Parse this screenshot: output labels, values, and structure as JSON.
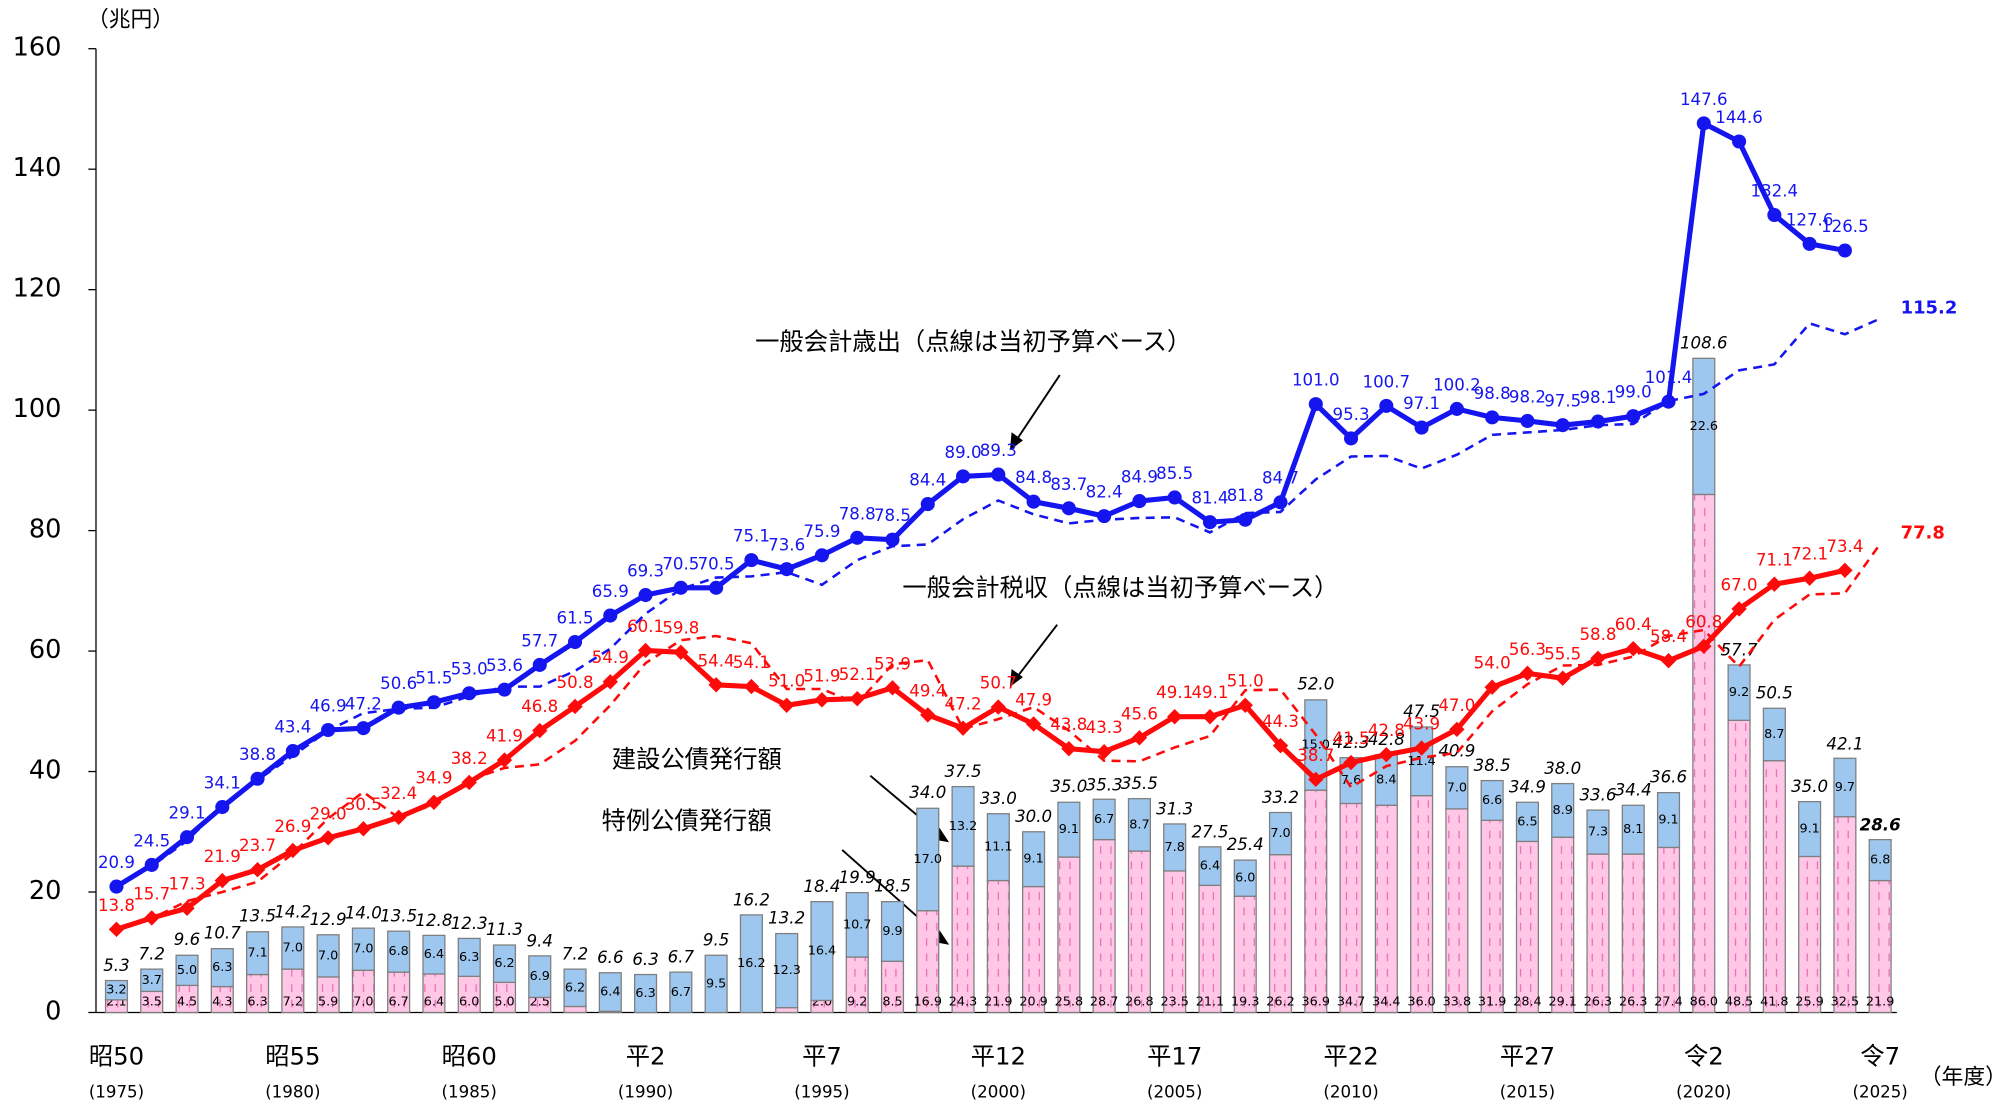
{
  "chart_data": {
    "type": "combo",
    "y_unit": "（兆円）",
    "x_unit": "（年度）",
    "categories": [
      "昭50",
      null,
      null,
      null,
      null,
      "昭55",
      null,
      null,
      null,
      null,
      "昭60",
      null,
      null,
      null,
      null,
      "平2",
      null,
      null,
      null,
      null,
      "平7",
      null,
      null,
      null,
      null,
      "平12",
      null,
      null,
      null,
      null,
      "平17",
      null,
      null,
      null,
      null,
      "平22",
      null,
      null,
      null,
      null,
      "平27",
      null,
      null,
      null,
      null,
      "令2",
      null,
      null,
      null,
      null,
      "令7"
    ],
    "category_years": [
      "(1975)",
      null,
      null,
      null,
      null,
      "(1980)",
      null,
      null,
      null,
      null,
      "(1985)",
      null,
      null,
      null,
      null,
      "(1990)",
      null,
      null,
      null,
      null,
      "(1995)",
      null,
      null,
      null,
      null,
      "(2000)",
      null,
      null,
      null,
      null,
      "(2005)",
      null,
      null,
      null,
      null,
      "(2010)",
      null,
      null,
      null,
      null,
      "(2015)",
      null,
      null,
      null,
      null,
      "(2020)",
      null,
      null,
      null,
      null,
      "(2025)"
    ],
    "ylim": [
      0,
      160
    ],
    "yticks": [
      0,
      20,
      40,
      60,
      80,
      100,
      120,
      140,
      160
    ],
    "annotations": [
      "一般会計歳出（点線は当初予算ベース）",
      "一般会計税収（点線は当初予算ベース）",
      "建設公債発行額",
      "特例公債発行額"
    ],
    "bars": [
      {
        "color": "#ffc6e6",
        "values": [
          2.1,
          3.5,
          4.5,
          4.3,
          6.3,
          7.2,
          5.9,
          7.0,
          6.7,
          6.4,
          6.0,
          5.0,
          2.5,
          1.0,
          0.2,
          null,
          null,
          null,
          null,
          0.8,
          2.0,
          9.2,
          8.5,
          16.9,
          24.3,
          21.9,
          20.9,
          25.8,
          28.7,
          26.8,
          23.5,
          21.1,
          19.3,
          26.2,
          36.9,
          34.7,
          34.4,
          36.0,
          33.8,
          31.9,
          28.4,
          29.1,
          26.3,
          26.3,
          27.4,
          86.0,
          48.5,
          41.8,
          25.9,
          32.5,
          21.9
        ],
        "value_labels": [
          "2.1",
          "3.5",
          "4.5",
          "4.3",
          "6.3",
          "7.2",
          "5.9",
          "7.0",
          "6.7",
          "6.4",
          "6.0",
          "5.0",
          "2.5",
          "1.0",
          "0.2",
          null,
          null,
          null,
          null,
          "0.8",
          "2.0",
          "9.2",
          "8.5",
          "16.9",
          "24.3",
          "21.9",
          "20.9",
          "25.8",
          "28.7",
          "26.8",
          "23.5",
          "21.1",
          "19.3",
          "26.2",
          "36.9",
          "34.7",
          "34.4",
          "36.0",
          "33.8",
          "31.9",
          "28.4",
          "29.1",
          "26.3",
          "26.3",
          "27.4",
          "86.0",
          "48.5",
          "41.8",
          "25.9",
          "32.5",
          "21.9"
        ]
      },
      {
        "color": "#9dc7ee",
        "values": [
          3.2,
          3.7,
          5.0,
          6.3,
          7.1,
          7.0,
          7.0,
          7.0,
          6.8,
          6.4,
          6.3,
          6.2,
          6.9,
          6.2,
          6.4,
          6.3,
          6.7,
          9.5,
          16.2,
          12.3,
          16.4,
          10.7,
          9.9,
          17.0,
          13.2,
          11.1,
          9.1,
          9.1,
          6.7,
          8.7,
          7.8,
          6.4,
          6.0,
          7.0,
          15.0,
          7.6,
          8.4,
          11.4,
          7.0,
          6.6,
          6.5,
          8.9,
          7.3,
          8.1,
          9.1,
          22.6,
          9.2,
          8.7,
          9.1,
          9.7,
          6.8
        ],
        "value_labels": [
          "3.2",
          "3.7",
          "5.0",
          "6.3",
          "7.1",
          "7.0",
          "7.0",
          "7.0",
          "6.8",
          "6.4",
          "6.3",
          "6.2",
          "6.9",
          "6.2",
          "6.4",
          "6.3",
          "6.7",
          "9.5",
          "16.2",
          "12.3",
          "16.4",
          "10.7",
          "9.9",
          "17.0",
          "13.2",
          "11.1",
          "9.1",
          "9.1",
          "6.7",
          "8.7",
          "7.8",
          "6.4",
          "6.0",
          "7.0",
          "15.0",
          "7.6",
          "8.4",
          "11.4",
          "7.0",
          "6.6",
          "6.5",
          "8.9",
          "7.3",
          "8.1",
          "9.1",
          "22.6",
          "9.2",
          "8.7",
          "9.1",
          "9.7",
          "6.8"
        ]
      }
    ],
    "bar_totals": {
      "values": [
        5.3,
        7.2,
        9.6,
        10.7,
        13.5,
        14.2,
        12.9,
        14.0,
        13.5,
        12.8,
        12.3,
        11.3,
        9.4,
        7.2,
        6.6,
        6.3,
        6.7,
        9.5,
        16.2,
        13.2,
        18.4,
        19.9,
        18.5,
        34.0,
        37.5,
        33.0,
        30.0,
        35.0,
        35.3,
        35.5,
        31.3,
        27.5,
        25.4,
        33.2,
        52.0,
        42.3,
        42.8,
        47.5,
        40.9,
        38.5,
        34.9,
        38.0,
        33.6,
        34.4,
        36.6,
        108.6,
        57.7,
        50.5,
        35.0,
        42.1,
        28.6
      ],
      "value_labels": [
        "5.3",
        "7.2",
        "9.6",
        "10.7",
        "13.5",
        "14.2",
        "12.9",
        "14.0",
        "13.5",
        "12.8",
        "12.3",
        "11.3",
        "9.4",
        "7.2",
        "6.6",
        "6.3",
        "6.7",
        "9.5",
        "16.2",
        "13.2",
        "18.4",
        "19.9",
        "18.5",
        "34.0",
        "37.5",
        "33.0",
        "30.0",
        "35.0",
        "35.3",
        "35.5",
        "31.3",
        "27.5",
        "25.4",
        "33.2",
        "52.0",
        "42.3",
        "42.8",
        "47.5",
        "40.9",
        "38.5",
        "34.9",
        "38.0",
        "33.6",
        "34.4",
        "36.6",
        "108.6",
        "57.7",
        "50.5",
        "35.0",
        "42.1",
        "28.6"
      ]
    },
    "series": [
      {
        "color": "#1515f0",
        "dashed": false,
        "marker": "circle",
        "values": [
          20.9,
          24.5,
          29.1,
          34.1,
          38.8,
          43.4,
          46.9,
          47.2,
          50.6,
          51.5,
          53.0,
          53.6,
          57.7,
          61.5,
          65.9,
          69.3,
          70.5,
          70.5,
          75.1,
          73.6,
          75.9,
          78.8,
          78.5,
          84.4,
          89.0,
          89.3,
          84.8,
          83.7,
          82.4,
          84.9,
          85.5,
          81.4,
          81.8,
          84.7,
          101.0,
          95.3,
          100.7,
          97.1,
          100.2,
          98.8,
          98.2,
          97.5,
          98.1,
          99.0,
          101.4,
          147.6,
          144.6,
          132.4,
          127.6,
          126.5,
          null
        ],
        "value_labels": [
          "20.9",
          "24.5",
          "29.1",
          "34.1",
          "38.8",
          "43.4",
          "46.9",
          "47.2",
          "50.6",
          "51.5",
          "53.0",
          "53.6",
          "57.7",
          "61.5",
          "65.9",
          "69.3",
          "70.5",
          "70.5",
          "75.1",
          "73.6",
          "75.9",
          "78.8",
          "78.5",
          "84.4",
          "89.0",
          "89.3",
          "84.8",
          "83.7",
          "82.4",
          "84.9",
          "85.5",
          "81.4",
          "81.8",
          "84.7",
          "101.0",
          "95.3",
          "100.7",
          "97.1",
          "100.2",
          "98.8",
          "98.2",
          "97.5",
          "98.1",
          "99.0",
          "101.4",
          "147.6",
          "144.6",
          "132.4",
          "127.6",
          "126.5",
          null
        ]
      },
      {
        "color": "#ff0a0a",
        "dashed": false,
        "marker": "diamond",
        "values": [
          13.8,
          15.7,
          17.3,
          21.9,
          23.7,
          26.9,
          29.0,
          30.5,
          32.4,
          34.9,
          38.2,
          41.9,
          46.8,
          50.8,
          54.9,
          60.1,
          59.8,
          54.4,
          54.1,
          51.0,
          51.9,
          52.1,
          53.9,
          49.4,
          47.2,
          50.7,
          47.9,
          43.8,
          43.3,
          45.6,
          49.1,
          49.1,
          51.0,
          44.3,
          38.7,
          41.5,
          42.8,
          43.9,
          47.0,
          54.0,
          56.3,
          55.5,
          58.8,
          60.4,
          58.4,
          60.8,
          67.0,
          71.1,
          72.1,
          73.4,
          null
        ],
        "value_labels": [
          "13.8",
          "15.7",
          "17.3",
          "21.9",
          "23.7",
          "26.9",
          "29.0",
          "30.5",
          "32.4",
          "34.9",
          "38.2",
          "41.9",
          "46.8",
          "50.8",
          "54.9",
          "60.1",
          "59.8",
          "54.4",
          "54.1",
          "51.0",
          "51.9",
          "52.1",
          "53.9",
          "49.4",
          "47.2",
          "50.7",
          "47.9",
          "43.8",
          "43.3",
          "45.6",
          "49.1",
          "49.1",
          "51.0",
          "44.3",
          "38.7",
          "41.5",
          "42.8",
          "43.9",
          "47.0",
          "54.0",
          "56.3",
          "55.5",
          "58.8",
          "60.4",
          "58.4",
          "60.8",
          "67.0",
          "71.1",
          "72.1",
          "73.4",
          null
        ]
      },
      {
        "color": "#1515f0",
        "dashed": true,
        "marker": "none",
        "values": [
          21.0,
          24.3,
          28.5,
          34.3,
          38.6,
          42.6,
          46.8,
          49.7,
          50.4,
          50.6,
          52.5,
          54.1,
          54.1,
          56.7,
          60.4,
          66.2,
          70.3,
          72.2,
          72.4,
          73.1,
          71.0,
          75.1,
          77.4,
          77.7,
          81.9,
          85.0,
          82.7,
          81.2,
          81.8,
          82.1,
          82.2,
          79.7,
          82.9,
          83.1,
          88.5,
          92.3,
          92.4,
          90.3,
          92.6,
          95.9,
          96.3,
          96.7,
          97.5,
          97.7,
          101.5,
          102.7,
          106.6,
          107.6,
          114.4,
          112.6,
          115.2
        ],
        "value_labels": [
          null,
          null,
          null,
          null,
          null,
          null,
          null,
          null,
          null,
          null,
          null,
          null,
          null,
          null,
          null,
          null,
          null,
          null,
          null,
          null,
          null,
          null,
          null,
          null,
          null,
          null,
          null,
          null,
          null,
          null,
          null,
          null,
          null,
          null,
          null,
          null,
          null,
          null,
          null,
          null,
          null,
          null,
          null,
          null,
          null,
          null,
          null,
          null,
          null,
          null,
          "115.2"
        ]
      },
      {
        "color": "#ff0a0a",
        "dashed": true,
        "marker": "none",
        "values": [
          13.7,
          15.6,
          18.5,
          20.0,
          21.7,
          26.4,
          32.2,
          36.6,
          32.3,
          34.6,
          38.6,
          40.6,
          41.2,
          45.1,
          51.0,
          58.0,
          61.8,
          62.5,
          61.3,
          53.7,
          53.7,
          51.3,
          57.8,
          58.5,
          47.1,
          48.7,
          50.7,
          46.8,
          41.8,
          41.7,
          44.0,
          45.9,
          53.5,
          53.6,
          46.1,
          37.4,
          40.9,
          42.3,
          43.1,
          50.0,
          54.5,
          57.6,
          57.7,
          59.1,
          62.5,
          63.5,
          57.4,
          65.2,
          69.4,
          69.6,
          77.8
        ],
        "value_labels": [
          null,
          null,
          null,
          null,
          null,
          null,
          null,
          null,
          null,
          null,
          null,
          null,
          null,
          null,
          null,
          null,
          null,
          null,
          null,
          null,
          null,
          null,
          null,
          null,
          null,
          null,
          null,
          null,
          null,
          null,
          null,
          null,
          null,
          null,
          null,
          null,
          null,
          null,
          null,
          null,
          null,
          null,
          null,
          null,
          null,
          null,
          null,
          null,
          null,
          null,
          "77.8"
        ]
      }
    ]
  }
}
